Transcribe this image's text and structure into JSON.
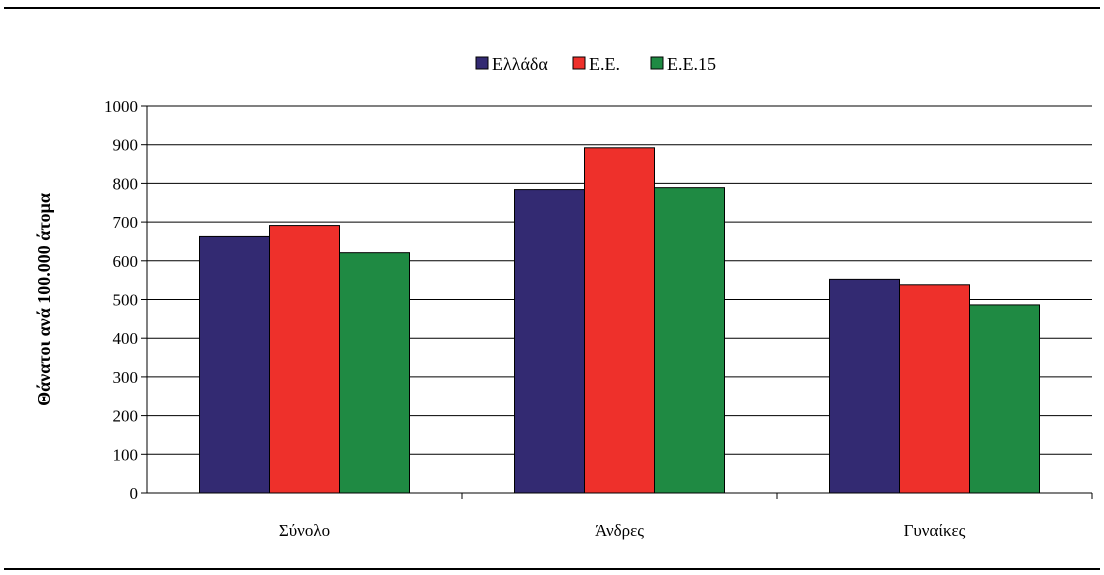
{
  "chart_data": {
    "type": "bar",
    "categories": [
      "Σύνολο",
      "Άνδρες",
      "Γυναίκες"
    ],
    "series": [
      {
        "name": "Ελλάδα",
        "color": "#332a72",
        "values": [
          663,
          784,
          552
        ]
      },
      {
        "name": "Ε.Ε.",
        "color": "#ee302b",
        "values": [
          691,
          892,
          538
        ]
      },
      {
        "name": "Ε.Ε.15",
        "color": "#1f8a43",
        "values": [
          621,
          789,
          486
        ]
      }
    ],
    "ylabel": "Θάνατοι ανά 100.000 άτομα",
    "xlabel": "",
    "ylim": [
      0,
      1000
    ],
    "yticks": [
      0,
      100,
      200,
      300,
      400,
      500,
      600,
      700,
      800,
      900,
      1000
    ],
    "grid": true,
    "legend": "top-center"
  }
}
